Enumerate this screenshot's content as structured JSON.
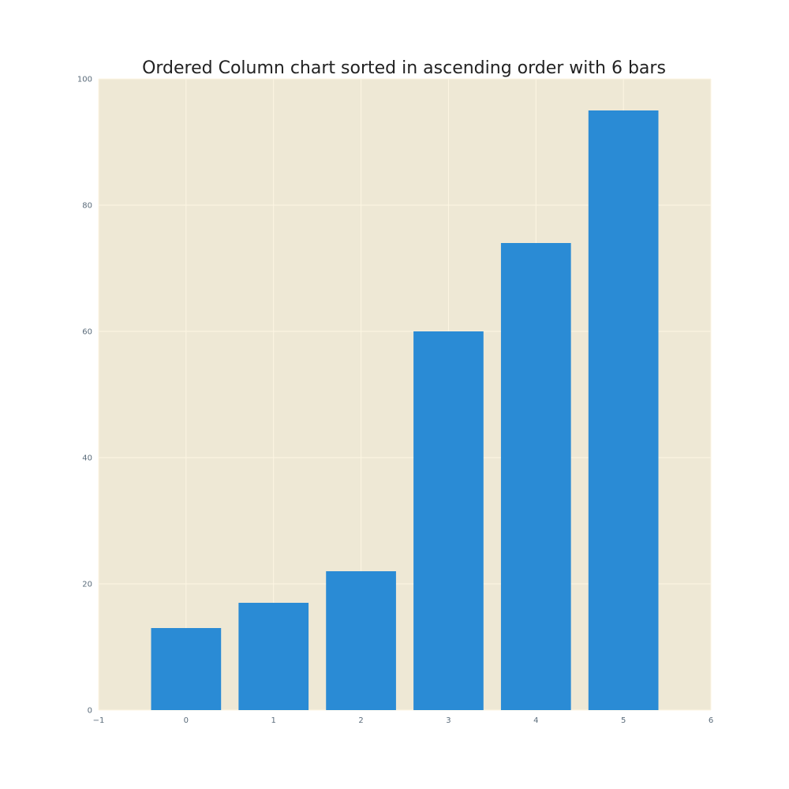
{
  "chart_data": {
    "type": "bar",
    "title": "Ordered Column chart sorted in ascending order with 6 bars",
    "xlabel": "",
    "ylabel": "",
    "categories": [
      "0",
      "1",
      "2",
      "3",
      "4",
      "5"
    ],
    "x": [
      0,
      1,
      2,
      3,
      4,
      5
    ],
    "values": [
      13,
      17,
      22,
      60,
      74,
      95
    ],
    "xlim": [
      -1,
      6
    ],
    "ylim": [
      0,
      100
    ],
    "xticks": [
      -1,
      0,
      1,
      2,
      3,
      4,
      5,
      6
    ],
    "xtick_labels": [
      "−1",
      "0",
      "1",
      "2",
      "3",
      "4",
      "5",
      "6"
    ],
    "yticks": [
      0,
      20,
      40,
      60,
      80,
      100
    ],
    "ytick_labels": [
      "0",
      "20",
      "40",
      "60",
      "80",
      "100"
    ],
    "grid": true,
    "legend": "none",
    "colors": {
      "bar": "#2a8bd5",
      "plot_background": "#eee8d5",
      "grid": "#fdf6e3"
    }
  }
}
